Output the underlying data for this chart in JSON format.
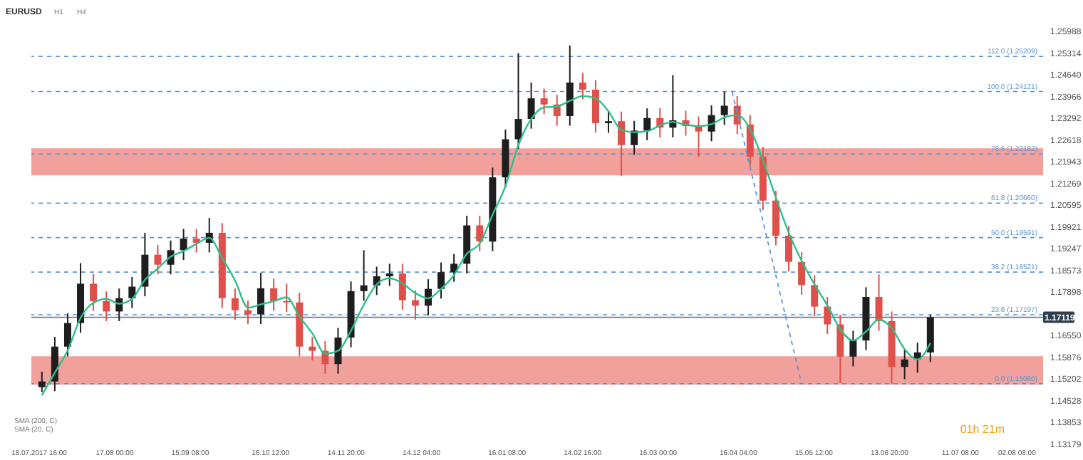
{
  "chart_data": {
    "type": "candlestick",
    "title": "EURUSD",
    "annotations": [
      "H1",
      "H4",
      "SMA (200, C)",
      "SMA (20, C)",
      "01h 21m"
    ],
    "x": [
      "2017-07-20",
      "2017-07-25",
      "2017-07-30",
      "2017-08-04",
      "2017-08-09",
      "2017-08-14",
      "2017-08-19",
      "2017-08-24",
      "2017-08-29",
      "2017-09-03",
      "2017-09-08",
      "2017-09-13",
      "2017-09-18",
      "2017-09-23",
      "2017-09-28",
      "2017-10-03",
      "2017-10-08",
      "2017-10-13",
      "2017-10-18",
      "2017-10-23",
      "2017-10-28",
      "2017-11-02",
      "2017-11-07",
      "2017-11-12",
      "2017-11-17",
      "2017-11-22",
      "2017-11-27",
      "2017-12-02",
      "2017-12-07",
      "2017-12-12",
      "2017-12-17",
      "2017-12-22",
      "2017-12-27",
      "2018-01-01",
      "2018-01-06",
      "2018-01-11",
      "2018-01-16",
      "2018-01-21",
      "2018-01-26",
      "2018-01-31",
      "2018-02-05",
      "2018-02-10",
      "2018-02-15",
      "2018-02-20",
      "2018-02-25",
      "2018-03-02",
      "2018-03-07",
      "2018-03-12",
      "2018-03-17",
      "2018-03-22",
      "2018-03-27",
      "2018-04-01",
      "2018-04-06",
      "2018-04-11",
      "2018-04-16",
      "2018-04-21",
      "2018-04-26",
      "2018-05-01",
      "2018-05-06",
      "2018-05-11",
      "2018-05-16",
      "2018-05-21",
      "2018-05-26",
      "2018-05-31",
      "2018-06-05",
      "2018-06-10",
      "2018-06-15",
      "2018-06-20",
      "2018-06-25",
      "2018-06-30"
    ],
    "ohlc": [
      [
        1.1495,
        1.1543,
        1.148,
        1.1513
      ],
      [
        1.1513,
        1.1651,
        1.1483,
        1.1621
      ],
      [
        1.1621,
        1.1724,
        1.1591,
        1.1694
      ],
      [
        1.1694,
        1.188,
        1.1664,
        1.1816
      ],
      [
        1.1816,
        1.1846,
        1.1732,
        1.1762
      ],
      [
        1.1762,
        1.1792,
        1.17,
        1.173
      ],
      [
        1.173,
        1.1801,
        1.17,
        1.1771
      ],
      [
        1.1771,
        1.1837,
        1.1741,
        1.1807
      ],
      [
        1.1807,
        1.1974,
        1.1777,
        1.1906
      ],
      [
        1.1906,
        1.1936,
        1.1845,
        1.1875
      ],
      [
        1.1875,
        1.195,
        1.1845,
        1.192
      ],
      [
        1.192,
        1.1986,
        1.189,
        1.1956
      ],
      [
        1.1956,
        1.1986,
        1.1913,
        1.1943
      ],
      [
        1.1943,
        1.202,
        1.1913,
        1.1974
      ],
      [
        1.1974,
        1.2004,
        1.1741,
        1.1771
      ],
      [
        1.1771,
        1.1801,
        1.1704,
        1.1734
      ],
      [
        1.1734,
        1.1764,
        1.1691,
        1.1721
      ],
      [
        1.1721,
        1.185,
        1.1691,
        1.1802
      ],
      [
        1.1802,
        1.1832,
        1.1732,
        1.1762
      ],
      [
        1.1762,
        1.1816,
        1.1728,
        1.1758
      ],
      [
        1.1758,
        1.1788,
        1.1591,
        1.1621
      ],
      [
        1.1621,
        1.1651,
        1.1578,
        1.1608
      ],
      [
        1.1608,
        1.1638,
        1.1537,
        1.1567
      ],
      [
        1.1567,
        1.1679,
        1.1537,
        1.1649
      ],
      [
        1.1649,
        1.1823,
        1.1619,
        1.1793
      ],
      [
        1.1793,
        1.192,
        1.1763,
        1.1811
      ],
      [
        1.1811,
        1.1869,
        1.1781,
        1.1839
      ],
      [
        1.1839,
        1.1878,
        1.1809,
        1.1848
      ],
      [
        1.1848,
        1.1878,
        1.1735,
        1.1765
      ],
      [
        1.1765,
        1.1795,
        1.1705,
        1.1748
      ],
      [
        1.1748,
        1.183,
        1.1718,
        1.18
      ],
      [
        1.18,
        1.1882,
        1.177,
        1.1852
      ],
      [
        1.1852,
        1.1908,
        1.1822,
        1.1878
      ],
      [
        1.1878,
        1.2027,
        1.1848,
        1.1997
      ],
      [
        1.1997,
        1.2027,
        1.1917,
        1.1947
      ],
      [
        1.1947,
        1.2176,
        1.1917,
        1.2146
      ],
      [
        1.2146,
        1.2294,
        1.2116,
        1.2264
      ],
      [
        1.2264,
        1.2531,
        1.2234,
        1.2327
      ],
      [
        1.2327,
        1.244,
        1.2297,
        1.2391
      ],
      [
        1.2391,
        1.2421,
        1.2342,
        1.2372
      ],
      [
        1.2372,
        1.2402,
        1.2306,
        1.2336
      ],
      [
        1.2336,
        1.2555,
        1.2306,
        1.244
      ],
      [
        1.244,
        1.247,
        1.2388,
        1.2418
      ],
      [
        1.2418,
        1.2448,
        1.2284,
        1.2314
      ],
      [
        1.2314,
        1.235,
        1.2284,
        1.232
      ],
      [
        1.232,
        1.235,
        1.215,
        1.2246
      ],
      [
        1.2246,
        1.2321,
        1.2216,
        1.2291
      ],
      [
        1.2291,
        1.236,
        1.2261,
        1.233
      ],
      [
        1.233,
        1.236,
        1.227,
        1.23
      ],
      [
        1.23,
        1.2463,
        1.227,
        1.2323
      ],
      [
        1.2323,
        1.2353,
        1.2275,
        1.2305
      ],
      [
        1.2305,
        1.2335,
        1.221,
        1.2288
      ],
      [
        1.2288,
        1.2369,
        1.2258,
        1.2339
      ],
      [
        1.2339,
        1.2412,
        1.2309,
        1.2368
      ],
      [
        1.2368,
        1.2398,
        1.228,
        1.231
      ],
      [
        1.231,
        1.234,
        1.218,
        1.221
      ],
      [
        1.221,
        1.224,
        1.2044,
        1.2074
      ],
      [
        1.2074,
        1.2104,
        1.1935,
        1.1965
      ],
      [
        1.1965,
        1.1995,
        1.1854,
        1.1884
      ],
      [
        1.1884,
        1.1914,
        1.1782,
        1.1812
      ],
      [
        1.1812,
        1.1842,
        1.1715,
        1.1745
      ],
      [
        1.1745,
        1.1775,
        1.166,
        1.169
      ],
      [
        1.169,
        1.172,
        1.1508,
        1.159
      ],
      [
        1.159,
        1.167,
        1.156,
        1.164
      ],
      [
        1.164,
        1.1805,
        1.161,
        1.1775
      ],
      [
        1.1775,
        1.1845,
        1.167,
        1.17
      ],
      [
        1.17,
        1.173,
        1.1506,
        1.1558
      ],
      [
        1.1558,
        1.1611,
        1.152,
        1.1581
      ],
      [
        1.1581,
        1.1633,
        1.154,
        1.1603
      ],
      [
        1.1603,
        1.172,
        1.1573,
        1.1712
      ]
    ],
    "colors": [
      "#1e1e1e",
      "#1e1e1e",
      "#1e1e1e",
      "#1e1e1e",
      "#e0504a",
      "#e0504a",
      "#1e1e1e",
      "#1e1e1e",
      "#1e1e1e",
      "#e0504a",
      "#1e1e1e",
      "#1e1e1e",
      "#e0504a",
      "#1e1e1e",
      "#e0504a",
      "#e0504a",
      "#e0504a",
      "#1e1e1e",
      "#e0504a",
      "#e0504a",
      "#e0504a",
      "#e0504a",
      "#e0504a",
      "#1e1e1e",
      "#1e1e1e",
      "#1e1e1e",
      "#1e1e1e",
      "#1e1e1e",
      "#e0504a",
      "#e0504a",
      "#1e1e1e",
      "#1e1e1e",
      "#1e1e1e",
      "#1e1e1e",
      "#e0504a",
      "#1e1e1e",
      "#1e1e1e",
      "#1e1e1e",
      "#1e1e1e",
      "#e0504a",
      "#e0504a",
      "#1e1e1e",
      "#e0504a",
      "#e0504a",
      "#1e1e1e",
      "#e0504a",
      "#1e1e1e",
      "#1e1e1e",
      "#e0504a",
      "#1e1e1e",
      "#e0504a",
      "#e0504a",
      "#1e1e1e",
      "#1e1e1e",
      "#e0504a",
      "#e0504a",
      "#e0504a",
      "#e0504a",
      "#e0504a",
      "#e0504a",
      "#e0504a",
      "#e0504a",
      "#e0504a",
      "#1e1e1e",
      "#1e1e1e",
      "#e0504a",
      "#e0504a",
      "#1e1e1e",
      "#1e1e1e",
      "#1e1e1e"
    ],
    "series": [
      {
        "type": "line",
        "color": "#2bbf8a",
        "values": [
          1.147,
          1.154,
          1.1609,
          1.171,
          1.1757,
          1.1769,
          1.1754,
          1.1769,
          1.1828,
          1.1863,
          1.19,
          1.1917,
          1.194,
          1.1958,
          1.1896,
          1.1826,
          1.1742,
          1.1752,
          1.1762,
          1.1774,
          1.1714,
          1.1662,
          1.1599,
          1.1608,
          1.167,
          1.1751,
          1.1814,
          1.1833,
          1.1817,
          1.1787,
          1.1771,
          1.18,
          1.1843,
          1.1909,
          1.1941,
          1.203,
          1.2119,
          1.2246,
          1.2327,
          1.2363,
          1.2366,
          1.2383,
          1.2398,
          1.2391,
          1.2351,
          1.2293,
          1.2286,
          1.2289,
          1.2307,
          1.2318,
          1.2309,
          1.2305,
          1.2311,
          1.2332,
          1.2339,
          1.2296,
          1.2198,
          1.2083,
          1.1974,
          1.1887,
          1.1814,
          1.1749,
          1.1675,
          1.164,
          1.1668,
          1.1705,
          1.1678,
          1.1613,
          1.1581,
          1.1632
        ]
      },
      {
        "type": "line",
        "color": "#5b93d3",
        "line_style": "dashed",
        "x": [
          "2018-04-14",
          "2018-05-11"
        ],
        "values": [
          1.2412,
          1.1506
        ]
      }
    ],
    "bands": [
      {
        "axis": "y",
        "from": 1.2152,
        "to": 1.2236,
        "color": "#f2a09b"
      },
      {
        "axis": "y",
        "from": 1.1503,
        "to": 1.1591,
        "color": "#f2a09b"
      }
    ],
    "ref_lines": [
      {
        "axis": "y",
        "value": 1.25209,
        "label": "112.0 (1.25209)",
        "color": "#5b93d3",
        "line_style": "dashed"
      },
      {
        "axis": "y",
        "value": 1.24121,
        "label": "100.0 (1.24121)",
        "color": "#5b93d3",
        "line_style": "dashed"
      },
      {
        "axis": "y",
        "value": 1.22182,
        "label": "78.6 (1.22182)",
        "color": "#5b93d3",
        "line_style": "dashed"
      },
      {
        "axis": "y",
        "value": 1.2066,
        "label": "61.8 (1.20660)",
        "color": "#5b93d3",
        "line_style": "dashed"
      },
      {
        "axis": "y",
        "value": 1.19591,
        "label": "50.0 (1.19591)",
        "color": "#5b93d3",
        "line_style": "dashed"
      },
      {
        "axis": "y",
        "value": 1.18521,
        "label": "38.2 (1.18521)",
        "color": "#5b93d3",
        "line_style": "dashed"
      },
      {
        "axis": "y",
        "value": 1.17197,
        "label": "23.6 (1.17197)",
        "color": "#5b93d3",
        "line_style": "dashed"
      },
      {
        "axis": "y",
        "value": 1.1506,
        "label": "0.0 (1.15060)",
        "color": "#5b93d3",
        "line_style": "dashed"
      },
      {
        "axis": "y",
        "value": 1.17119,
        "label": "1.17119",
        "color": "#7a7a7a",
        "line_style": "solid"
      }
    ],
    "xlim": [
      "2017-07-18T16:00",
      "2018-08-10"
    ],
    "xticks": [
      {
        "value": "2017-07-18T16:00",
        "label": "18.07.2017 16:00"
      },
      {
        "value": "2017-08-17T00:00",
        "label": "17.08 00:00"
      },
      {
        "value": "2017-09-15T08:00",
        "label": "15.09 08:00"
      },
      {
        "value": "2017-10-16T12:00",
        "label": "16.10 12:00"
      },
      {
        "value": "2017-11-14T20:00",
        "label": "14.11 20:00"
      },
      {
        "value": "2017-12-14T04:00",
        "label": "14.12 04:00"
      },
      {
        "value": "2018-01-16T08:00",
        "label": "16.01 08:00"
      },
      {
        "value": "2018-02-14T16:00",
        "label": "14.02 16:00"
      },
      {
        "value": "2018-03-16T00:00",
        "label": "16.03 00:00"
      },
      {
        "value": "2018-04-16T04:00",
        "label": "16.04 04:00"
      },
      {
        "value": "2018-05-15T12:00",
        "label": "15.05 12:00"
      },
      {
        "value": "2018-06-13T20:00",
        "label": "13.06 20:00"
      },
      {
        "value": "2018-07-11T08:00",
        "label": "11.07 08:00"
      },
      {
        "value": "2018-08-02T08:00",
        "label": "02.08 08:00"
      }
    ],
    "ylim": [
      1.13179,
      1.25988
    ],
    "yticks": [
      1.25988,
      1.25314,
      {
        "value": 1.2464,
        "label": "1.24640"
      },
      1.23966,
      1.23292,
      1.22618,
      1.21943,
      1.21269,
      1.20595,
      1.19921,
      1.19247,
      1.18573,
      1.17898,
      {
        "value": 1.1655,
        "label": "1.16550"
      },
      1.15876,
      1.15202,
      1.14528,
      1.13853,
      1.13179
    ],
    "grid": false
  }
}
